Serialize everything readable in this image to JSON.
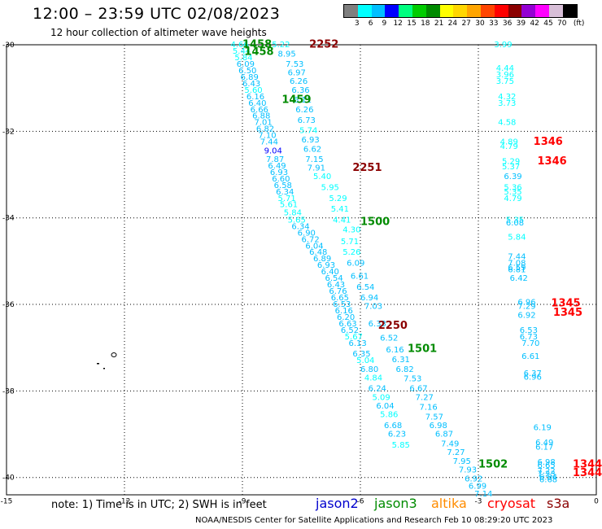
{
  "header": {
    "title": "12:00 – 23:59 UTC 02/08/2023",
    "subtitle": "12 hour collection of altimeter wave heights"
  },
  "color_scale": {
    "unit_label": "(ft)",
    "colors": [
      "#7f7f7f",
      "#00ffff",
      "#00bfff",
      "#0000ff",
      "#00ff7f",
      "#00cd00",
      "#008b00",
      "#ffff00",
      "#ffd700",
      "#ffa500",
      "#ff4500",
      "#ff0000",
      "#8b0000",
      "#9400d3",
      "#ff00ff",
      "#d8bfd8",
      "#000000"
    ],
    "labels": [
      "3",
      "6",
      "9",
      "12",
      "15",
      "18",
      "21",
      "24",
      "27",
      "30",
      "33",
      "36",
      "39",
      "42",
      "45",
      "70"
    ]
  },
  "note_text": "note:  1) Time is in UTC;  2) SWH is in feet",
  "legend": [
    {
      "label": "jason2",
      "color": "#0000cd"
    },
    {
      "label": "jason3",
      "color": "#008b00"
    },
    {
      "label": "altika",
      "color": "#ff8c00"
    },
    {
      "label": "cryosat",
      "color": "#ff0000"
    },
    {
      "label": "s3a",
      "color": "#8b0000"
    }
  ],
  "footer": "NOAA/NESDIS Center for Satellite Applications and Research    Feb 10 08:29:20 UTC 2023",
  "chart_data": {
    "type": "scatter",
    "xlabel": "",
    "ylabel": "",
    "xlim": [
      -15,
      0
    ],
    "ylim": [
      -40.4,
      -30
    ],
    "xticks": [
      -15,
      -12,
      -9,
      -6,
      -3,
      0
    ],
    "xtick_labels": [
      "-15",
      "-12",
      "-9",
      "-6",
      "-3",
      "0"
    ],
    "yticks": [
      -30,
      -32,
      -34,
      -36,
      -38,
      -40
    ],
    "ytick_labels": [
      "-30",
      "-32",
      "-34",
      "-36",
      "-38",
      "-40"
    ],
    "grid": true,
    "label_colors": {
      "jason3": "#008b00",
      "cryosat": "#ff0000",
      "s3a": "#8b0000"
    },
    "time_labels": [
      {
        "text": "1458",
        "sat": "jason3",
        "x": -9.0,
        "y": -30.0
      },
      {
        "text": "1458",
        "sat": "jason3",
        "x": -8.95,
        "y": -30.17
      },
      {
        "text": "1459",
        "sat": "jason3",
        "x": -8.0,
        "y": -31.28
      },
      {
        "text": "1500",
        "sat": "jason3",
        "x": -6.0,
        "y": -34.1
      },
      {
        "text": "1501",
        "sat": "jason3",
        "x": -4.8,
        "y": -37.03
      },
      {
        "text": "1502",
        "sat": "jason3",
        "x": -3.0,
        "y": -39.7
      },
      {
        "text": "2252",
        "sat": "s3a",
        "x": -7.3,
        "y": -30.0
      },
      {
        "text": "2251",
        "sat": "s3a",
        "x": -6.2,
        "y": -32.85
      },
      {
        "text": "2250",
        "sat": "s3a",
        "x": -5.55,
        "y": -36.5
      },
      {
        "text": "1346",
        "sat": "cryosat",
        "x": -1.6,
        "y": -32.25
      },
      {
        "text": "1346",
        "sat": "cryosat",
        "x": -1.5,
        "y": -32.7
      },
      {
        "text": "1345",
        "sat": "cryosat",
        "x": -1.15,
        "y": -35.98
      },
      {
        "text": "1345",
        "sat": "cryosat",
        "x": -1.1,
        "y": -36.2
      },
      {
        "text": "1344",
        "sat": "cryosat",
        "x": -0.6,
        "y": -39.7
      },
      {
        "text": "1344",
        "sat": "cryosat",
        "x": -0.6,
        "y": -39.9
      }
    ],
    "series": [
      {
        "name": "jason3",
        "points": [
          {
            "x": -9.3,
            "y": -30.0,
            "v": "4.66"
          },
          {
            "x": -9.25,
            "y": -30.15,
            "v": "5.44"
          },
          {
            "x": -9.2,
            "y": -30.3,
            "v": "5.84"
          },
          {
            "x": -9.15,
            "y": -30.45,
            "v": "6.09"
          },
          {
            "x": -9.1,
            "y": -30.6,
            "v": "6.50"
          },
          {
            "x": -9.05,
            "y": -30.75,
            "v": "6.89"
          },
          {
            "x": -9.0,
            "y": -30.9,
            "v": "6.43"
          },
          {
            "x": -8.95,
            "y": -31.05,
            "v": "5.60"
          },
          {
            "x": -8.9,
            "y": -31.2,
            "v": "6.16"
          },
          {
            "x": -8.85,
            "y": -31.35,
            "v": "6.40"
          },
          {
            "x": -8.8,
            "y": -31.5,
            "v": "6.66"
          },
          {
            "x": -8.75,
            "y": -31.65,
            "v": "6.88"
          },
          {
            "x": -8.7,
            "y": -31.8,
            "v": "7.01"
          },
          {
            "x": -8.65,
            "y": -31.95,
            "v": "6.82"
          },
          {
            "x": -8.6,
            "y": -32.1,
            "v": "7.10"
          },
          {
            "x": -8.55,
            "y": -32.25,
            "v": "7.44"
          },
          {
            "x": -8.45,
            "y": -32.45,
            "v": "9.04"
          },
          {
            "x": -8.4,
            "y": -32.65,
            "v": "7.87"
          },
          {
            "x": -8.35,
            "y": -32.8,
            "v": "6.49"
          },
          {
            "x": -8.3,
            "y": -32.95,
            "v": "6.93"
          },
          {
            "x": -8.25,
            "y": -33.1,
            "v": "6.60"
          },
          {
            "x": -8.2,
            "y": -33.25,
            "v": "6.58"
          },
          {
            "x": -8.15,
            "y": -33.4,
            "v": "6.34"
          },
          {
            "x": -8.1,
            "y": -33.55,
            "v": "5.71"
          },
          {
            "x": -8.05,
            "y": -33.7,
            "v": "5.61"
          },
          {
            "x": -7.95,
            "y": -33.88,
            "v": "5.84"
          },
          {
            "x": -7.85,
            "y": -34.05,
            "v": "5.65"
          },
          {
            "x": -7.75,
            "y": -34.2,
            "v": "6.34"
          },
          {
            "x": -7.6,
            "y": -34.35,
            "v": "6.90"
          },
          {
            "x": -7.5,
            "y": -34.5,
            "v": "6.72"
          },
          {
            "x": -7.4,
            "y": -34.65,
            "v": "6.04"
          },
          {
            "x": -7.3,
            "y": -34.8,
            "v": "6.48"
          },
          {
            "x": -7.2,
            "y": -34.95,
            "v": "6.89"
          },
          {
            "x": -7.1,
            "y": -35.1,
            "v": "6.93"
          },
          {
            "x": -7.0,
            "y": -35.25,
            "v": "6.40"
          },
          {
            "x": -6.9,
            "y": -35.4,
            "v": "6.54"
          },
          {
            "x": -6.85,
            "y": -35.55,
            "v": "6.43"
          },
          {
            "x": -6.8,
            "y": -35.7,
            "v": "6.76"
          },
          {
            "x": -6.75,
            "y": -35.85,
            "v": "6.65"
          },
          {
            "x": -6.7,
            "y": -36.0,
            "v": "6.53"
          },
          {
            "x": -6.65,
            "y": -36.15,
            "v": "6.16"
          },
          {
            "x": -6.6,
            "y": -36.3,
            "v": "6.20"
          },
          {
            "x": -6.55,
            "y": -36.45,
            "v": "6.63"
          },
          {
            "x": -6.5,
            "y": -36.6,
            "v": "6.52"
          },
          {
            "x": -6.4,
            "y": -36.75,
            "v": "5.67"
          },
          {
            "x": -6.3,
            "y": -36.9,
            "v": "6.13"
          },
          {
            "x": -6.2,
            "y": -37.15,
            "v": "6.35"
          },
          {
            "x": -6.1,
            "y": -37.3,
            "v": "5.04"
          },
          {
            "x": -6.0,
            "y": -37.5,
            "v": "6.80"
          },
          {
            "x": -5.9,
            "y": -37.7,
            "v": "4.84"
          },
          {
            "x": -5.8,
            "y": -37.95,
            "v": "6.24"
          },
          {
            "x": -5.7,
            "y": -38.15,
            "v": "5.09"
          },
          {
            "x": -5.6,
            "y": -38.35,
            "v": "6.04"
          },
          {
            "x": -5.5,
            "y": -38.55,
            "v": "5.86"
          },
          {
            "x": -5.4,
            "y": -38.8,
            "v": "6.68"
          },
          {
            "x": -5.3,
            "y": -39.0,
            "v": "6.23"
          },
          {
            "x": -5.2,
            "y": -39.25,
            "v": "5.85"
          }
        ]
      },
      {
        "name": "s3a",
        "points": [
          {
            "x": -8.25,
            "y": -30.0,
            "v": "5.22"
          },
          {
            "x": -8.1,
            "y": -30.22,
            "v": "8.95"
          },
          {
            "x": -7.9,
            "y": -30.45,
            "v": "7.53"
          },
          {
            "x": -7.85,
            "y": -30.65,
            "v": "6.97"
          },
          {
            "x": -7.8,
            "y": -30.85,
            "v": "6.26"
          },
          {
            "x": -7.75,
            "y": -31.05,
            "v": "6.36"
          },
          {
            "x": -7.7,
            "y": -31.28,
            "v": "6.11"
          },
          {
            "x": -7.65,
            "y": -31.5,
            "v": "6.26"
          },
          {
            "x": -7.6,
            "y": -31.75,
            "v": "6.73"
          },
          {
            "x": -7.55,
            "y": -31.98,
            "v": "5.74"
          },
          {
            "x": -7.5,
            "y": -32.2,
            "v": "6.93"
          },
          {
            "x": -7.45,
            "y": -32.42,
            "v": "6.62"
          },
          {
            "x": -7.4,
            "y": -32.65,
            "v": "7.15"
          },
          {
            "x": -7.35,
            "y": -32.85,
            "v": "7.91"
          },
          {
            "x": -7.2,
            "y": -33.05,
            "v": "5.40"
          },
          {
            "x": -7.0,
            "y": -33.3,
            "v": "5.95"
          },
          {
            "x": -6.8,
            "y": -33.55,
            "v": "5.29"
          },
          {
            "x": -6.75,
            "y": -33.8,
            "v": "5.41"
          },
          {
            "x": -6.7,
            "y": -34.05,
            "v": "4.41"
          },
          {
            "x": -6.45,
            "y": -34.28,
            "v": "4.30"
          },
          {
            "x": -6.5,
            "y": -34.55,
            "v": "5.71"
          },
          {
            "x": -6.45,
            "y": -34.8,
            "v": "5.26"
          },
          {
            "x": -6.35,
            "y": -35.05,
            "v": "6.09"
          },
          {
            "x": -6.25,
            "y": -35.35,
            "v": "6.61"
          },
          {
            "x": -6.1,
            "y": -35.6,
            "v": "6.54"
          },
          {
            "x": -6.0,
            "y": -35.85,
            "v": "6.94"
          },
          {
            "x": -5.9,
            "y": -36.05,
            "v": "7.03"
          },
          {
            "x": -5.8,
            "y": -36.45,
            "v": "6.33"
          },
          {
            "x": -5.5,
            "y": -36.78,
            "v": "6.52"
          },
          {
            "x": -5.35,
            "y": -37.05,
            "v": "6.16"
          },
          {
            "x": -5.2,
            "y": -37.28,
            "v": "6.31"
          },
          {
            "x": -5.1,
            "y": -37.5,
            "v": "6.82"
          },
          {
            "x": -4.9,
            "y": -37.72,
            "v": "7.53"
          },
          {
            "x": -4.75,
            "y": -37.95,
            "v": "6.67"
          },
          {
            "x": -4.6,
            "y": -38.15,
            "v": "7.27"
          },
          {
            "x": -4.5,
            "y": -38.38,
            "v": "7.16"
          },
          {
            "x": -4.35,
            "y": -38.6,
            "v": "7.57"
          },
          {
            "x": -4.25,
            "y": -38.8,
            "v": "6.98"
          },
          {
            "x": -4.1,
            "y": -39.0,
            "v": "6.87"
          },
          {
            "x": -3.95,
            "y": -39.22,
            "v": "7.49"
          },
          {
            "x": -3.8,
            "y": -39.42,
            "v": "7.27"
          },
          {
            "x": -3.65,
            "y": -39.63,
            "v": "7.95"
          },
          {
            "x": -3.5,
            "y": -39.83,
            "v": "7.93"
          },
          {
            "x": -3.35,
            "y": -40.03,
            "v": "6.92"
          },
          {
            "x": -3.25,
            "y": -40.2,
            "v": "6.99"
          },
          {
            "x": -3.1,
            "y": -40.38,
            "v": "7.14"
          }
        ]
      },
      {
        "name": "cryosat",
        "points": [
          {
            "x": -2.6,
            "y": -30.0,
            "v": "3.99"
          },
          {
            "x": -2.55,
            "y": -30.55,
            "v": "4.44"
          },
          {
            "x": -2.55,
            "y": -30.7,
            "v": "3.96"
          },
          {
            "x": -2.55,
            "y": -30.85,
            "v": "3.75"
          },
          {
            "x": -2.5,
            "y": -31.2,
            "v": "4.32"
          },
          {
            "x": -2.5,
            "y": -31.35,
            "v": "3.73"
          },
          {
            "x": -2.5,
            "y": -31.8,
            "v": "4.58"
          },
          {
            "x": -2.45,
            "y": -32.25,
            "v": "4.89"
          },
          {
            "x": -2.45,
            "y": -32.35,
            "v": "4.79"
          },
          {
            "x": -2.4,
            "y": -32.7,
            "v": "5.29"
          },
          {
            "x": -2.4,
            "y": -32.82,
            "v": "5.37"
          },
          {
            "x": -2.35,
            "y": -33.05,
            "v": "6.39"
          },
          {
            "x": -2.35,
            "y": -33.3,
            "v": "5.36"
          },
          {
            "x": -2.35,
            "y": -33.4,
            "v": "5.35"
          },
          {
            "x": -2.35,
            "y": -33.55,
            "v": "4.79"
          },
          {
            "x": -2.3,
            "y": -34.05,
            "v": "5.35"
          },
          {
            "x": -2.3,
            "y": -34.12,
            "v": "6.08"
          },
          {
            "x": -2.25,
            "y": -34.45,
            "v": "5.84"
          },
          {
            "x": -2.25,
            "y": -34.9,
            "v": "7.44"
          },
          {
            "x": -2.25,
            "y": -35.05,
            "v": "7.08"
          },
          {
            "x": -2.25,
            "y": -35.15,
            "v": "6.59"
          },
          {
            "x": -2.25,
            "y": -35.2,
            "v": "6.81"
          },
          {
            "x": -2.2,
            "y": -35.4,
            "v": "6.42"
          },
          {
            "x": -2.0,
            "y": -35.95,
            "v": "6.96"
          },
          {
            "x": -2.0,
            "y": -36.05,
            "v": "7.29"
          },
          {
            "x": -2.0,
            "y": -36.25,
            "v": "6.92"
          },
          {
            "x": -1.95,
            "y": -36.6,
            "v": "6.53"
          },
          {
            "x": -1.95,
            "y": -36.75,
            "v": "6.73"
          },
          {
            "x": -1.9,
            "y": -36.9,
            "v": "7.70"
          },
          {
            "x": -1.9,
            "y": -37.2,
            "v": "6.61"
          },
          {
            "x": -1.85,
            "y": -37.6,
            "v": "6.37"
          },
          {
            "x": -1.85,
            "y": -37.68,
            "v": "6.96"
          },
          {
            "x": -1.6,
            "y": -38.85,
            "v": "6.19"
          },
          {
            "x": -1.55,
            "y": -39.2,
            "v": "6.49"
          },
          {
            "x": -1.55,
            "y": -39.3,
            "v": "6.17"
          },
          {
            "x": -1.5,
            "y": -39.65,
            "v": "6.98"
          },
          {
            "x": -1.5,
            "y": -39.72,
            "v": "6.65"
          },
          {
            "x": -1.5,
            "y": -39.85,
            "v": "7.22"
          },
          {
            "x": -1.5,
            "y": -39.92,
            "v": "7.23"
          },
          {
            "x": -1.45,
            "y": -40.0,
            "v": "6.84"
          },
          {
            "x": -1.45,
            "y": -40.05,
            "v": "6.68"
          }
        ]
      }
    ]
  }
}
